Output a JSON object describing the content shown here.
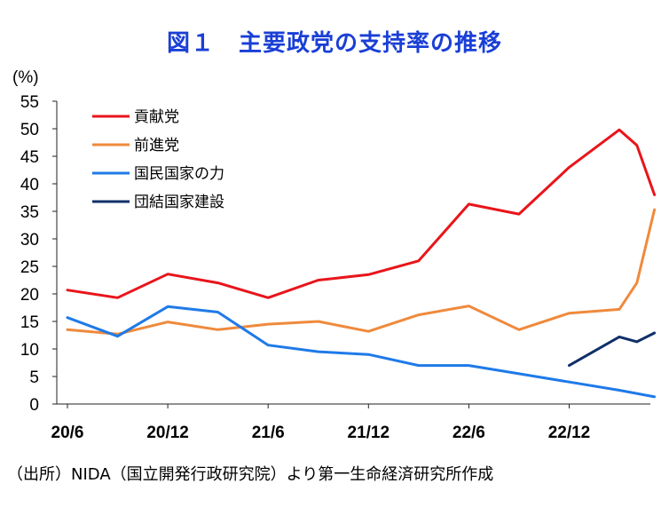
{
  "chart_data": {
    "type": "line",
    "title": "図１　主要政党の支持率の推移",
    "ylabel": "(%)",
    "xlabel": "",
    "ylim": [
      0,
      55
    ],
    "yticks": [
      0,
      5,
      10,
      15,
      20,
      25,
      30,
      35,
      40,
      45,
      50,
      55
    ],
    "x_labels": [
      "20/6",
      "20/12",
      "21/6",
      "21/12",
      "22/6",
      "22/12"
    ],
    "x_label_positions": [
      0,
      2,
      4,
      6,
      8,
      10
    ],
    "xlim": [
      0,
      11.3
    ],
    "grid": false,
    "legend_position": "top-left",
    "series": [
      {
        "name": "貢献党",
        "color": "#e8151b",
        "x": [
          0,
          1,
          2,
          3,
          4,
          5,
          6,
          7,
          8,
          9,
          10,
          11,
          11.35,
          11.7
        ],
        "values": [
          20.7,
          19.3,
          23.6,
          22.0,
          19.3,
          22.5,
          23.5,
          26.0,
          36.3,
          34.5,
          43.0,
          49.8,
          47.0,
          38.0
        ]
      },
      {
        "name": "前進党",
        "color": "#ef8a3c",
        "x": [
          0,
          1,
          2,
          3,
          4,
          5,
          6,
          7,
          8,
          9,
          10,
          11,
          11.35,
          11.7
        ],
        "values": [
          13.5,
          12.7,
          14.9,
          13.5,
          14.5,
          15.0,
          13.2,
          16.2,
          17.8,
          13.5,
          16.5,
          17.2,
          22.0,
          35.3
        ]
      },
      {
        "name": "国民国家の力",
        "color": "#1f7ae8",
        "x": [
          0,
          1,
          2,
          3,
          4,
          5,
          6,
          7,
          8,
          9,
          10,
          11,
          11.7
        ],
        "values": [
          15.7,
          12.3,
          17.7,
          16.7,
          10.7,
          9.5,
          9.0,
          7.0,
          7.0,
          5.5,
          4.0,
          2.5,
          1.3
        ]
      },
      {
        "name": "団結国家建設",
        "color": "#0f2f69",
        "x": [
          10,
          11,
          11.35,
          11.7
        ],
        "values": [
          7.0,
          12.2,
          11.3,
          12.9
        ]
      }
    ]
  },
  "source_text": "（出所）NIDA（国立開発行政研究院）より第一生命経済研究所作成"
}
